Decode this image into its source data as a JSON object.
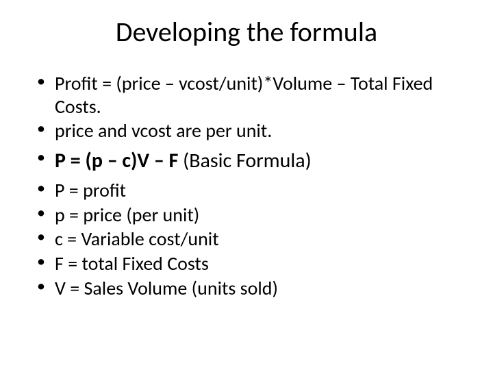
{
  "slide": {
    "title": "Developing the formula",
    "bullets": [
      {
        "text": "Profit = (price – vcost/unit)*Volume – Total Fixed Costs.",
        "style": "normal"
      },
      {
        "text": "price and vcost are per unit.",
        "style": "normal"
      },
      {
        "bold_text": "P = (p – c)V – F",
        "paren_text": "  (Basic Formula)",
        "style": "formula"
      },
      {
        "text": "P = profit",
        "style": "normal"
      },
      {
        "text": "p = price (per unit)",
        "style": "normal"
      },
      {
        "text": "c = Variable cost/unit",
        "style": "normal"
      },
      {
        "text": "F = total Fixed Costs",
        "style": "normal"
      },
      {
        "text": "V = Sales Volume (units sold)",
        "style": "normal"
      }
    ],
    "colors": {
      "background": "#ffffff",
      "text": "#000000"
    },
    "typography": {
      "title_fontsize": 40,
      "body_fontsize": 28,
      "formula_fontsize": 30,
      "font_family": "Calibri"
    }
  }
}
